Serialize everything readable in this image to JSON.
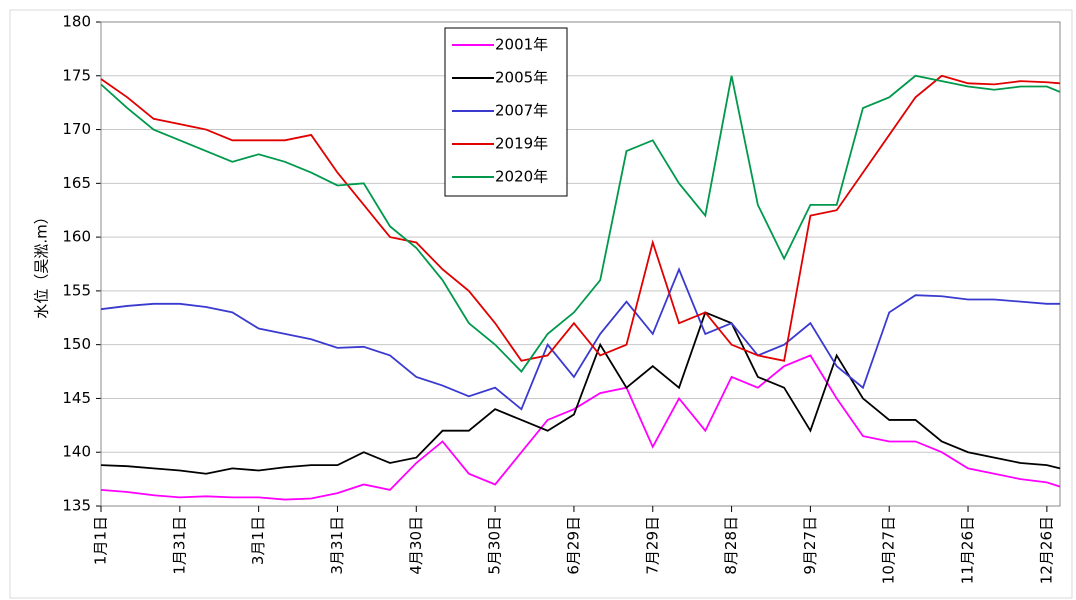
{
  "chart_data": {
    "type": "line",
    "y_label": "水位（吴淞.m）",
    "x": [
      1,
      11,
      21,
      31,
      41,
      51,
      61,
      71,
      81,
      91,
      101,
      111,
      121,
      131,
      141,
      151,
      161,
      171,
      181,
      191,
      201,
      211,
      221,
      231,
      241,
      251,
      261,
      271,
      281,
      291,
      301,
      311,
      321,
      331,
      341,
      351,
      361,
      366
    ],
    "xlim": [
      1,
      366
    ],
    "xticks": [
      {
        "value": 1,
        "label": "1月1日"
      },
      {
        "value": 31,
        "label": "1月31日"
      },
      {
        "value": 61,
        "label": "3月1日"
      },
      {
        "value": 91,
        "label": "3月31日"
      },
      {
        "value": 121,
        "label": "4月30日"
      },
      {
        "value": 151,
        "label": "5月30日"
      },
      {
        "value": 181,
        "label": "6月29日"
      },
      {
        "value": 211,
        "label": "7月29日"
      },
      {
        "value": 241,
        "label": "8月28日"
      },
      {
        "value": 271,
        "label": "9月27日"
      },
      {
        "value": 301,
        "label": "10月27日"
      },
      {
        "value": 331,
        "label": "11月26日"
      },
      {
        "value": 361,
        "label": "12月26日"
      }
    ],
    "ylim": [
      135,
      180
    ],
    "yticks": [
      135,
      140,
      145,
      150,
      155,
      160,
      165,
      170,
      175,
      180
    ],
    "grid": true,
    "legend": "top",
    "series": [
      {
        "name": "2001年",
        "color": "#ff00ff",
        "values": [
          136.5,
          136.3,
          136,
          135.8,
          135.9,
          135.8,
          135.8,
          135.6,
          135.7,
          136.2,
          137,
          136.5,
          139,
          141,
          138,
          137,
          140,
          143,
          144,
          145.5,
          146,
          140.5,
          145,
          142,
          147,
          146,
          148,
          149,
          145,
          141.5,
          141,
          141,
          140,
          138.5,
          138,
          137.5,
          137.2,
          136.8
        ]
      },
      {
        "name": "2005年",
        "color": "#000000",
        "values": [
          138.8,
          138.7,
          138.5,
          138.3,
          138,
          138.5,
          138.3,
          138.6,
          138.8,
          138.8,
          140,
          139,
          139.5,
          142,
          142,
          144,
          143,
          142,
          143.5,
          150,
          146,
          148,
          146,
          153,
          152,
          147,
          146,
          142,
          149,
          145,
          143,
          143,
          141,
          140,
          139.5,
          139,
          138.8,
          138.5
        ]
      },
      {
        "name": "2007年",
        "color": "#3a3ad0",
        "values": [
          153.3,
          153.6,
          153.8,
          153.8,
          153.5,
          153,
          151.5,
          151,
          150.5,
          149.7,
          149.8,
          149,
          147,
          146.2,
          145.2,
          146,
          144,
          150,
          147,
          151,
          154,
          151,
          157,
          151,
          152,
          149,
          150,
          152,
          148,
          146,
          153,
          154.6,
          154.5,
          154.2,
          154.2,
          154,
          153.8,
          153.8
        ]
      },
      {
        "name": "2019年",
        "color": "#e00000",
        "values": [
          174.7,
          173,
          171,
          170.5,
          170,
          169,
          169,
          169,
          169.5,
          166,
          163,
          160,
          159.5,
          157,
          155,
          152,
          148.5,
          149,
          152,
          149,
          150,
          159.5,
          152,
          153,
          150,
          149,
          148.5,
          162,
          162.5,
          166,
          169.5,
          173,
          175,
          174.3,
          174.2,
          174.5,
          174.4,
          174.3
        ]
      },
      {
        "name": "2020年",
        "color": "#00994c",
        "values": [
          174.2,
          172,
          170,
          169,
          168,
          167,
          167.7,
          167,
          166,
          164.8,
          165,
          161,
          159,
          156,
          152,
          150,
          147.5,
          151,
          153,
          156,
          168,
          169,
          165,
          162,
          175,
          163,
          158,
          163,
          163,
          172,
          173,
          175,
          174.5,
          174,
          173.7,
          174,
          174,
          173.5
        ]
      }
    ]
  }
}
